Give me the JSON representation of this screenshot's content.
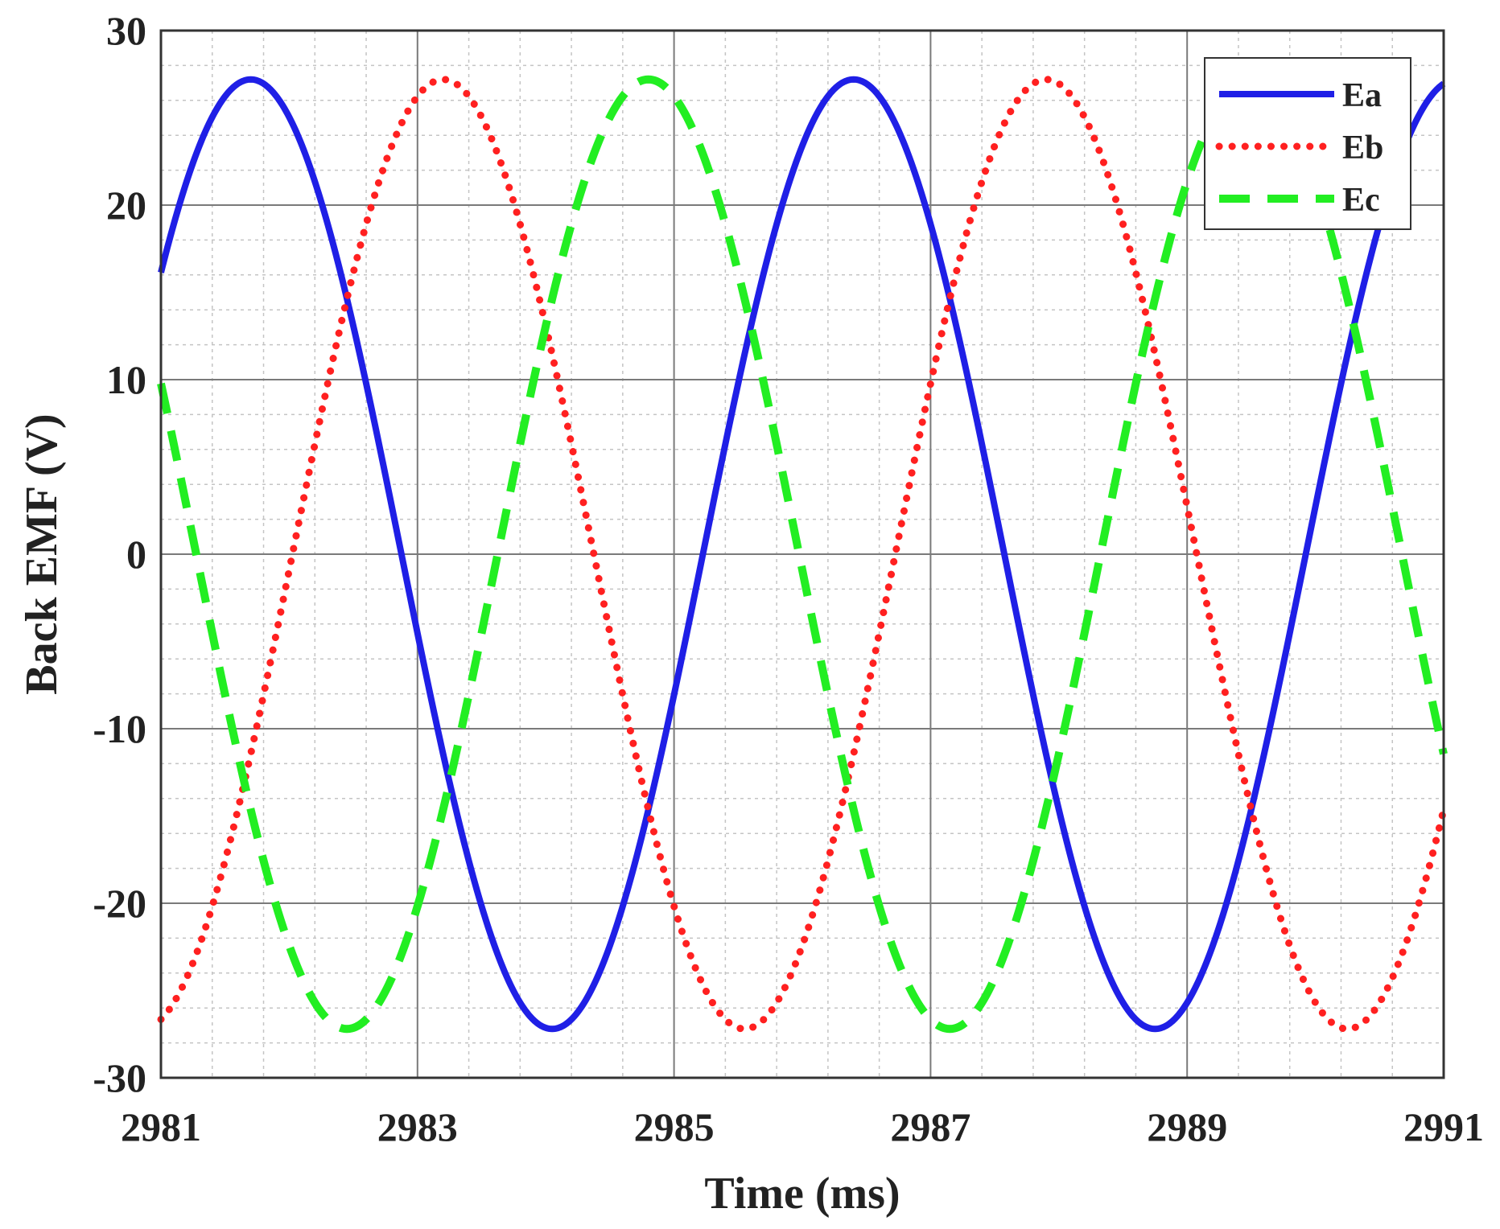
{
  "chart_data": {
    "type": "line",
    "title": "",
    "xlabel": "Time (ms)",
    "ylabel": "Back EMF (V)",
    "xlim": [
      2981,
      2991
    ],
    "ylim": [
      -30,
      30
    ],
    "xticks": [
      2981,
      2983,
      2985,
      2987,
      2989,
      2991
    ],
    "xtick_labels": [
      "2981",
      "2983",
      "2985",
      "2987",
      "2989",
      "2991"
    ],
    "yticks": [
      -30,
      -20,
      -10,
      0,
      10,
      20,
      30
    ],
    "ytick_labels": [
      "-30",
      "-20",
      "-10",
      "0",
      "10",
      "20",
      "30"
    ],
    "grid": "major and minor",
    "legend_position": "top-right",
    "amplitude": 27.2,
    "period_ms": 4.7,
    "series": [
      {
        "name": "Ea",
        "style": "solid",
        "color": "#1f1fe6",
        "peak_times_ms": [
          2981.7,
          2986.4
        ],
        "trough_times_ms": [
          2984.0,
          2988.9
        ]
      },
      {
        "name": "Eb",
        "style": "dotted",
        "color": "#ff2020",
        "peak_times_ms": [
          2983.2,
          2988.1
        ],
        "trough_times_ms": [
          2981.0,
          2985.6,
          2990.6
        ]
      },
      {
        "name": "Ec",
        "style": "dashed",
        "color": "#22ee22",
        "peak_times_ms": [
          2984.8
        ],
        "trough_times_ms": [
          2982.4,
          2987.3
        ]
      }
    ]
  }
}
